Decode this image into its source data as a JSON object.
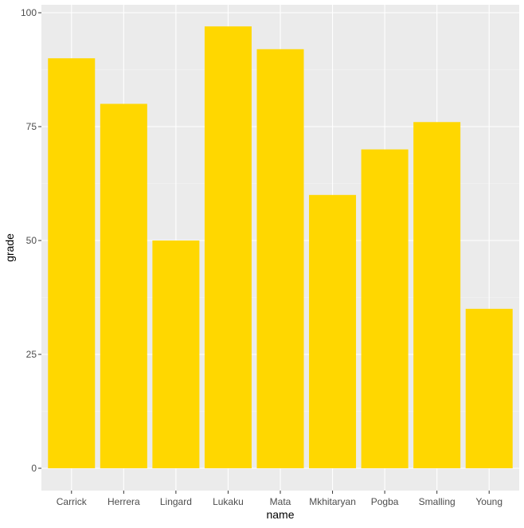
{
  "chart_data": {
    "type": "bar",
    "xlabel": "name",
    "ylabel": "grade",
    "categories": [
      "Carrick",
      "Herrera",
      "Lingard",
      "Lukaku",
      "Mata",
      "Mkhitaryan",
      "Pogba",
      "Smalling",
      "Young"
    ],
    "values": [
      90,
      80,
      50,
      97,
      92,
      60,
      70,
      76,
      35
    ],
    "ylim": [
      0,
      100
    ],
    "yticks": [
      0,
      25,
      50,
      75,
      100
    ],
    "grid": true,
    "legend": "none",
    "colors": {
      "bar": "#FFD700",
      "panel_background": "#EBEBEB",
      "grid_major": "#FFFFFF",
      "grid_minor": "#F5F5F5",
      "tick_text": "#4D4D4D",
      "axis_title": "#000000"
    }
  }
}
